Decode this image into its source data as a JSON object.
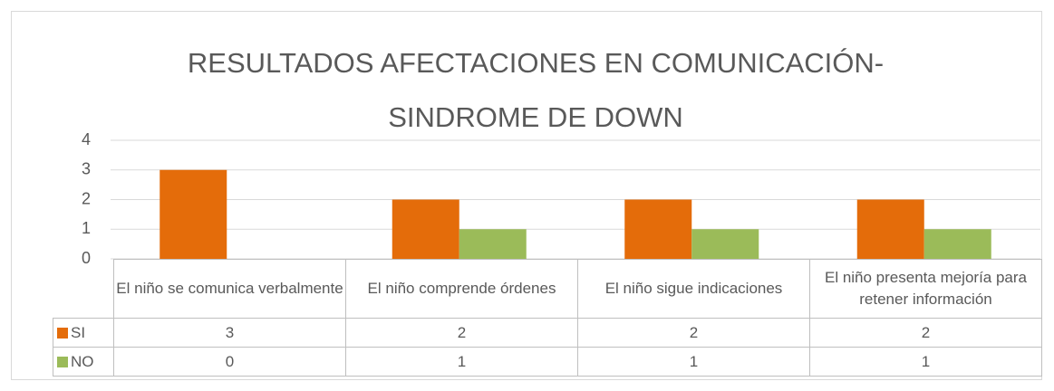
{
  "chart_data": {
    "type": "bar",
    "title": "RESULTADOS AFECTACIONES EN COMUNICACIÓN-SINDROME DE DOWN",
    "categories": [
      "El niño se comunica verbalmente",
      "El niño comprende órdenes",
      "El niño sigue indicaciones",
      "El niño presenta mejoría para retener información"
    ],
    "series": [
      {
        "name": "SI",
        "color": "#e46c0a",
        "values": [
          3,
          2,
          2,
          2
        ]
      },
      {
        "name": "NO",
        "color": "#9bbb59",
        "values": [
          0,
          1,
          1,
          1
        ]
      }
    ],
    "ylim": [
      0,
      4
    ],
    "yticks": [
      0,
      1,
      2,
      3,
      4
    ],
    "grid": true
  }
}
